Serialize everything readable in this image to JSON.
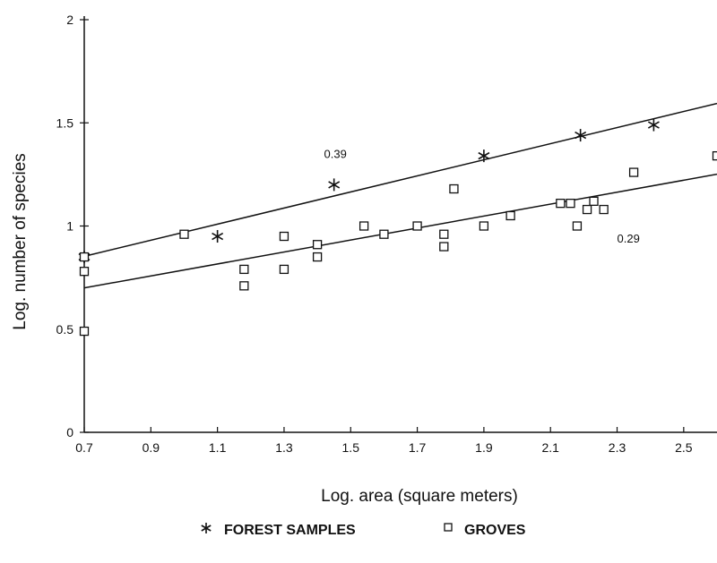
{
  "chart_data": {
    "type": "scatter",
    "xlabel": "Log. area (square meters)",
    "ylabel": "Log. number of species",
    "xlim": [
      0.7,
      2.6
    ],
    "ylim": [
      0,
      2
    ],
    "x_ticks": [
      "0.7",
      "0.9",
      "1.1",
      "1.3",
      "1.5",
      "1.7",
      "1.9",
      "2.1",
      "2.3",
      "2.5"
    ],
    "y_ticks": [
      "0",
      "0.5",
      "1",
      "1.5",
      "2"
    ],
    "grid": false,
    "legend_position": "bottom-center",
    "series": [
      {
        "name": "FOREST SAMPLES",
        "marker": "asterisk",
        "points": [
          [
            0.7,
            0.85
          ],
          [
            1.1,
            0.95
          ],
          [
            1.45,
            1.2
          ],
          [
            1.9,
            1.34
          ],
          [
            2.19,
            1.44
          ],
          [
            2.41,
            1.49
          ]
        ]
      },
      {
        "name": "GROVES",
        "marker": "square",
        "points": [
          [
            0.7,
            0.85
          ],
          [
            0.7,
            0.78
          ],
          [
            0.7,
            0.49
          ],
          [
            1.0,
            0.96
          ],
          [
            1.18,
            0.79
          ],
          [
            1.18,
            0.71
          ],
          [
            1.3,
            0.95
          ],
          [
            1.3,
            0.79
          ],
          [
            1.4,
            0.91
          ],
          [
            1.4,
            0.85
          ],
          [
            1.54,
            1.0
          ],
          [
            1.6,
            0.96
          ],
          [
            1.7,
            1.0
          ],
          [
            1.78,
            0.96
          ],
          [
            1.78,
            0.9
          ],
          [
            1.81,
            1.18
          ],
          [
            1.9,
            1.0
          ],
          [
            1.98,
            1.05
          ],
          [
            2.13,
            1.11
          ],
          [
            2.16,
            1.11
          ],
          [
            2.18,
            1.0
          ],
          [
            2.21,
            1.08
          ],
          [
            2.23,
            1.12
          ],
          [
            2.26,
            1.08
          ],
          [
            2.35,
            1.26
          ],
          [
            2.6,
            1.34
          ]
        ]
      }
    ],
    "fit_lines": [
      {
        "label": "0.39",
        "x": [
          0.7,
          2.6
        ],
        "y": [
          0.853,
          1.594
        ],
        "label_at": [
          1.42,
          1.33
        ]
      },
      {
        "label": "0.29",
        "x": [
          0.7,
          2.6
        ],
        "y": [
          0.7,
          1.251
        ],
        "label_at": [
          2.3,
          0.92
        ]
      }
    ]
  }
}
